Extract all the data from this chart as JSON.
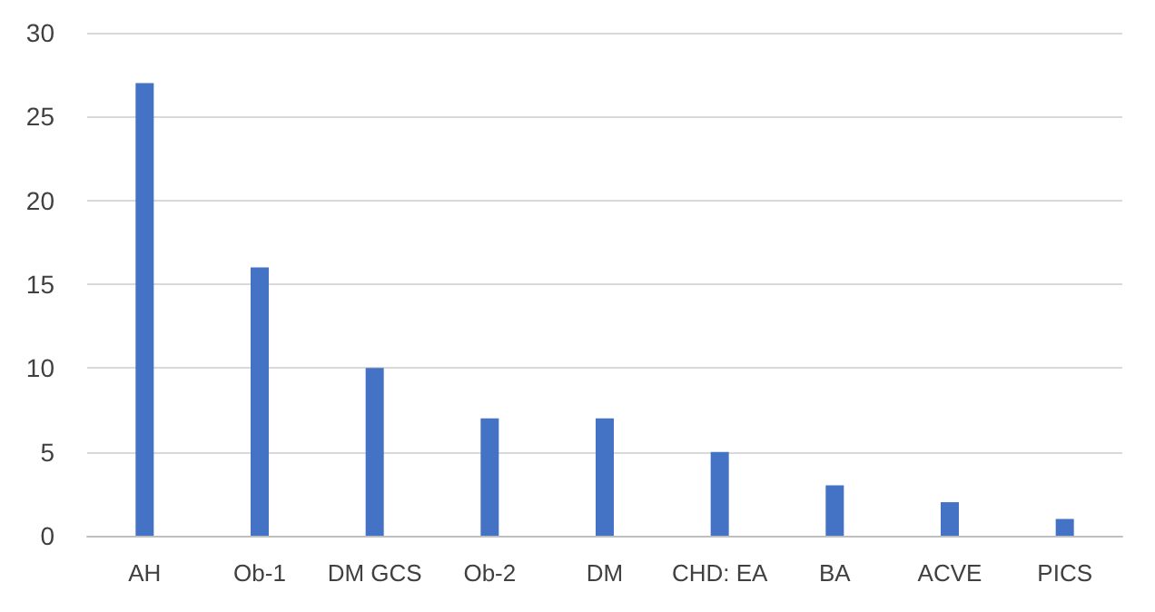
{
  "chart_data": {
    "type": "bar",
    "categories": [
      "AH",
      "Ob-1",
      "DM GCS",
      "Ob-2",
      "DM",
      "CHD: EA",
      "BA",
      "ACVE",
      "PICS"
    ],
    "values": [
      27,
      16,
      10,
      7,
      7,
      5,
      3,
      2,
      1
    ],
    "color": "#4472c4",
    "ylim": [
      0,
      30
    ],
    "yticks": [
      0,
      5,
      10,
      15,
      20,
      25,
      30
    ],
    "grid": "y"
  }
}
